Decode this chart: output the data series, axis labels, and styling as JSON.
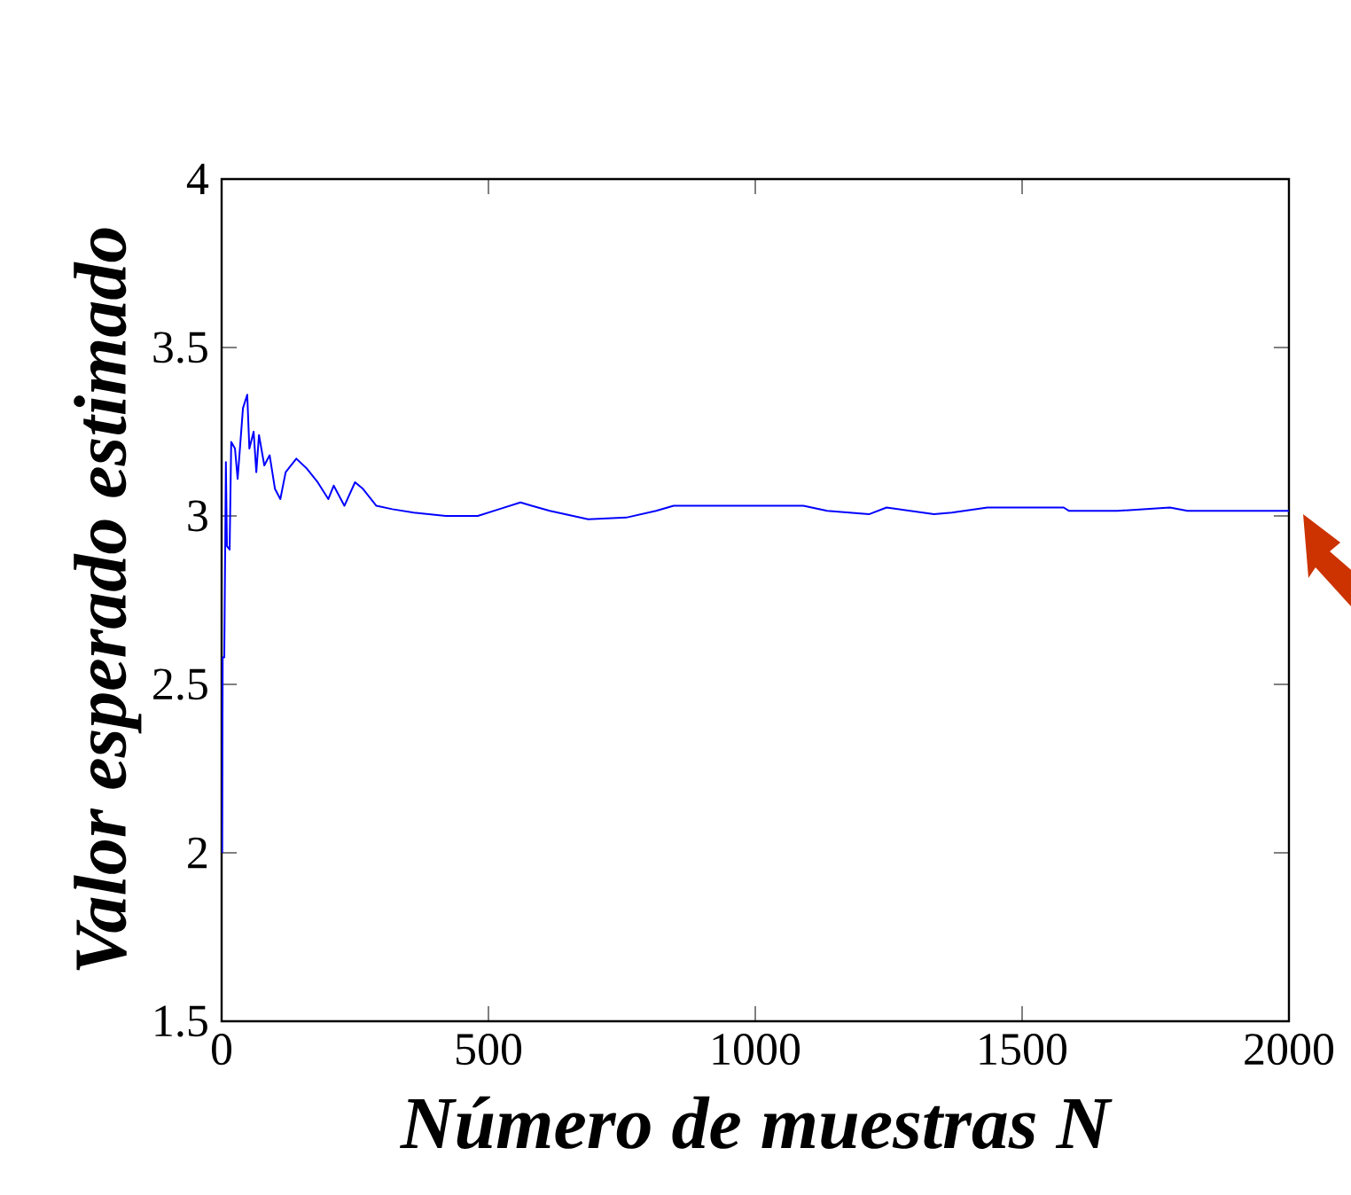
{
  "chart_data": {
    "type": "line",
    "xlabel": "Número de muestras N",
    "ylabel": "Valor esperado estimado",
    "xlim": [
      0,
      2000
    ],
    "ylim": [
      1.5,
      4
    ],
    "xticks": [
      0,
      500,
      1000,
      1500,
      2000
    ],
    "yticks": [
      1.5,
      2,
      2.5,
      3,
      3.5,
      4
    ],
    "grid": false,
    "marker": "none",
    "line_style": "solid",
    "series": [
      {
        "color": "#0000ff",
        "x": [
          1,
          2,
          5,
          8,
          10,
          15,
          18,
          25,
          30,
          40,
          48,
          52,
          60,
          65,
          70,
          80,
          90,
          100,
          110,
          120,
          140,
          160,
          180,
          200,
          210,
          230,
          250,
          265,
          290,
          320,
          360,
          420,
          480,
          520,
          560,
          581,
          615,
          687,
          758,
          814,
          847,
          980,
          1090,
          1135,
          1213,
          1246,
          1335,
          1368,
          1435,
          1578,
          1588,
          1678,
          1777,
          1810,
          2000
        ],
        "values": [
          2.0,
          2.58,
          2.58,
          3.16,
          2.91,
          2.9,
          3.22,
          3.2,
          3.11,
          3.32,
          3.36,
          3.2,
          3.25,
          3.13,
          3.24,
          3.15,
          3.18,
          3.08,
          3.05,
          3.13,
          3.17,
          3.14,
          3.1,
          3.05,
          3.09,
          3.03,
          3.1,
          3.08,
          3.03,
          3.02,
          3.01,
          3.0,
          3.0,
          3.02,
          3.04,
          3.03,
          3.015,
          2.99,
          2.995,
          3.015,
          3.03,
          3.03,
          3.03,
          3.015,
          3.005,
          3.025,
          3.005,
          3.01,
          3.025,
          3.025,
          3.015,
          3.015,
          3.025,
          3.015,
          3.015
        ]
      }
    ]
  }
}
